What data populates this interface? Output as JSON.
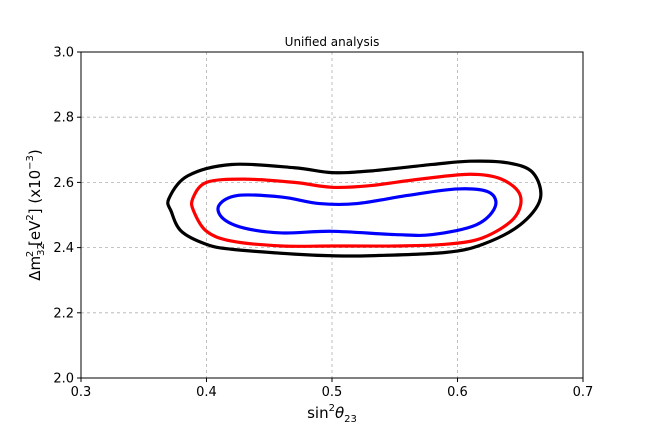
{
  "chart_data": {
    "type": "line",
    "title": "Unified analysis",
    "xlabel": {
      "base": "sin",
      "sup": "2",
      "sym": "θ",
      "sub": "23"
    },
    "ylabel": {
      "pre": "Δm",
      "sub": "32",
      "sup": "2",
      "mid1": " [eV",
      "sup2": "2",
      "mid2": "] (x10",
      "sup3": "−3",
      "end": ")"
    },
    "xlim": [
      0.3,
      0.7
    ],
    "ylim": [
      2.0,
      3.0
    ],
    "xticks": [
      0.3,
      0.4,
      0.5,
      0.6,
      0.7
    ],
    "xtick_labels": [
      "0.3",
      "0.4",
      "0.5",
      "0.6",
      "0.7"
    ],
    "yticks": [
      2.0,
      2.2,
      2.4,
      2.6,
      2.8,
      3.0
    ],
    "ytick_labels": [
      "2.0",
      "2.2",
      "2.4",
      "2.6",
      "2.8",
      "3.0"
    ],
    "grid": true,
    "series": [
      {
        "color": "#000000",
        "closed": true,
        "x": [
          0.37,
          0.385,
          0.42,
          0.47,
          0.5,
          0.53,
          0.58,
          0.61,
          0.64,
          0.66,
          0.666,
          0.65,
          0.62,
          0.59,
          0.53,
          0.5,
          0.47,
          0.42,
          0.4,
          0.38,
          0.372
        ],
        "y": [
          2.55,
          2.62,
          2.655,
          2.645,
          2.63,
          2.635,
          2.655,
          2.665,
          2.66,
          2.63,
          2.55,
          2.47,
          2.41,
          2.385,
          2.375,
          2.375,
          2.38,
          2.395,
          2.41,
          2.45,
          2.51
        ]
      },
      {
        "color": "#ff0000",
        "closed": true,
        "x": [
          0.389,
          0.4,
          0.43,
          0.47,
          0.5,
          0.53,
          0.57,
          0.61,
          0.635,
          0.65,
          0.645,
          0.62,
          0.59,
          0.55,
          0.5,
          0.46,
          0.42,
          0.4,
          0.39
        ],
        "y": [
          2.55,
          2.6,
          2.61,
          2.6,
          2.585,
          2.59,
          2.61,
          2.625,
          2.61,
          2.56,
          2.49,
          2.43,
          2.41,
          2.405,
          2.405,
          2.405,
          2.42,
          2.45,
          2.51
        ]
      },
      {
        "color": "#0000ff",
        "closed": true,
        "x": [
          0.41,
          0.425,
          0.46,
          0.49,
          0.52,
          0.56,
          0.6,
          0.625,
          0.63,
          0.615,
          0.58,
          0.55,
          0.5,
          0.46,
          0.43,
          0.413
        ],
        "y": [
          2.53,
          2.56,
          2.555,
          2.535,
          2.535,
          2.56,
          2.58,
          2.57,
          2.525,
          2.47,
          2.44,
          2.44,
          2.45,
          2.445,
          2.46,
          2.49
        ]
      }
    ]
  }
}
